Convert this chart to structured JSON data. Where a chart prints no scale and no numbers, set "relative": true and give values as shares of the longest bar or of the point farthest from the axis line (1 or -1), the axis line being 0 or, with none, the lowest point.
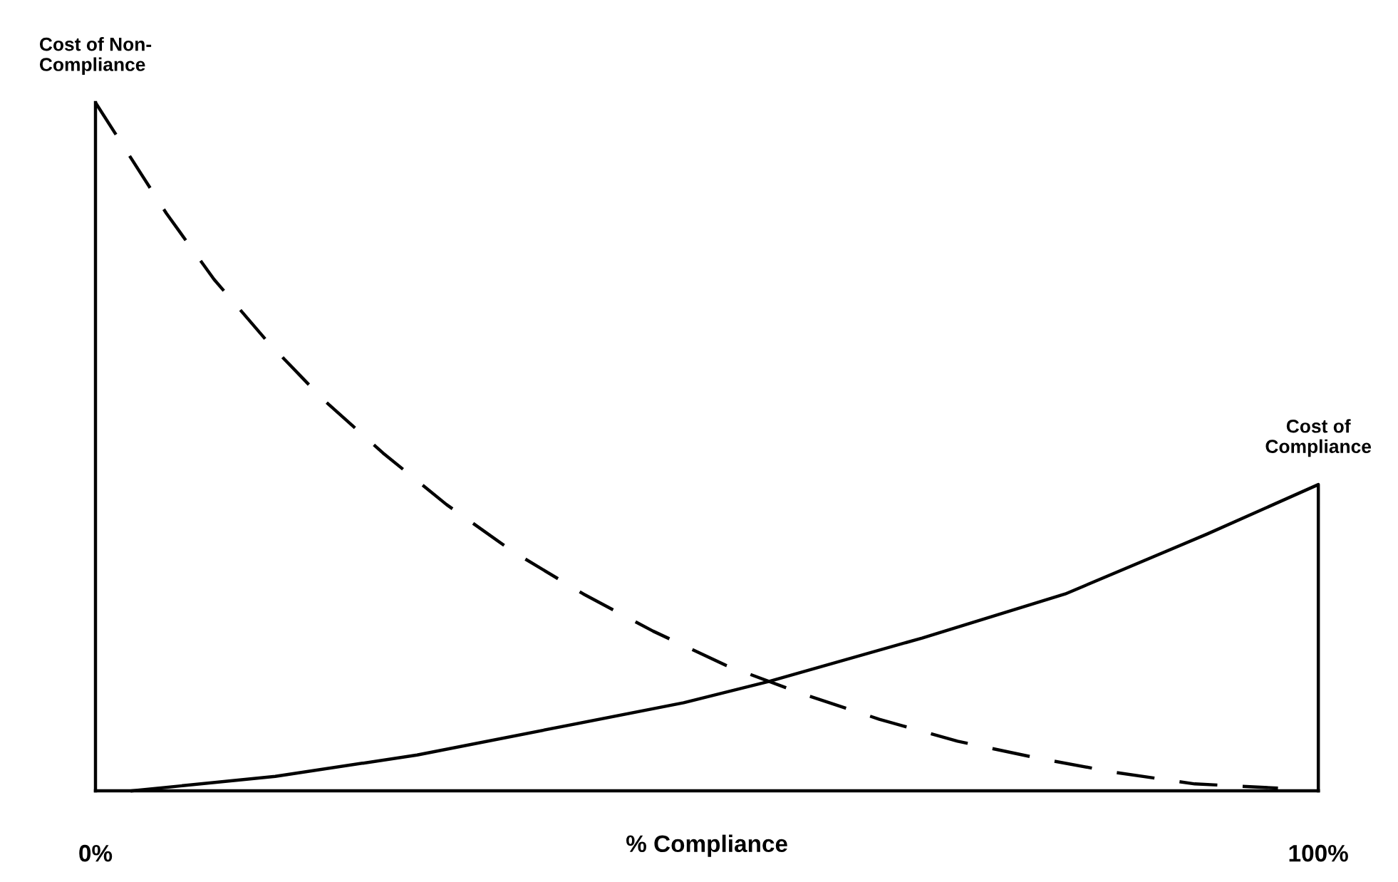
{
  "chart_data": {
    "type": "line",
    "xlabel": "% Compliance",
    "relative": true,
    "xlim": [
      0,
      100
    ],
    "xticks": [
      {
        "value": 0,
        "label": "0%"
      },
      {
        "value": 100,
        "label": "100%"
      }
    ],
    "tick_labels": "x",
    "series": [
      {
        "name": "Cost of Non-\nCompliance",
        "color": "#000000",
        "line_style": "dashed",
        "x": [
          0,
          5.8,
          9.7,
          14.1,
          18.6,
          23.5,
          28.7,
          34.1,
          39.9,
          45.6,
          51.6,
          57.8,
          64.1,
          70.5,
          76.9,
          83.3,
          89.9,
          96.7
        ],
        "values": [
          1.0,
          0.839,
          0.743,
          0.652,
          0.569,
          0.491,
          0.416,
          0.348,
          0.286,
          0.232,
          0.182,
          0.141,
          0.104,
          0.072,
          0.048,
          0.027,
          0.01,
          0.004
        ]
      },
      {
        "name": "Cost of\nCompliance",
        "color": "#000000",
        "line_style": "solid",
        "x": [
          3.0,
          14.7,
          26.3,
          48.1,
          55.1,
          67.6,
          79.3,
          90.9,
          100,
          100
        ],
        "values": [
          0,
          0.021,
          0.052,
          0.128,
          0.159,
          0.222,
          0.286,
          0.373,
          0.445,
          0
        ]
      }
    ]
  }
}
